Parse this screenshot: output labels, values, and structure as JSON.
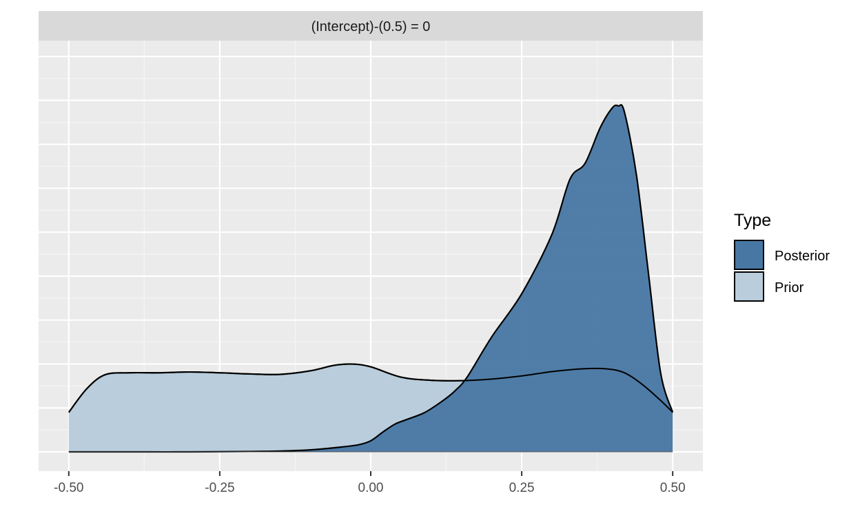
{
  "chart_data": {
    "type": "area",
    "facet_label": "(Intercept)-(0.5) = 0",
    "xlabel": "",
    "ylabel": "",
    "xlim": [
      -0.55,
      0.55
    ],
    "ylim": [
      0,
      1.0
    ],
    "x_ticks": [
      -0.5,
      -0.25,
      0.0,
      0.25,
      0.5
    ],
    "x_tick_labels": [
      "-0.50",
      "-0.25",
      "0.00",
      "0.25",
      "0.50"
    ],
    "grid": true,
    "y_axis_ticks_shown": false,
    "legend": {
      "title": "Type",
      "position": "right",
      "entries": [
        "Posterior",
        "Prior"
      ]
    },
    "series": [
      {
        "name": "Prior",
        "color": "#b9cddc",
        "x": [
          -0.5,
          -0.47,
          -0.44,
          -0.4,
          -0.35,
          -0.3,
          -0.25,
          -0.2,
          -0.15,
          -0.1,
          -0.06,
          -0.03,
          0.0,
          0.05,
          0.1,
          0.15,
          0.2,
          0.25,
          0.3,
          0.35,
          0.39,
          0.42,
          0.45,
          0.48,
          0.5
        ],
        "y": [
          0.1,
          0.16,
          0.195,
          0.2,
          0.2,
          0.202,
          0.2,
          0.197,
          0.196,
          0.205,
          0.219,
          0.222,
          0.215,
          0.189,
          0.181,
          0.18,
          0.184,
          0.192,
          0.203,
          0.21,
          0.21,
          0.2,
          0.17,
          0.13,
          0.1
        ]
      },
      {
        "name": "Posterior",
        "color": "#4877a3",
        "x": [
          -0.5,
          -0.4,
          -0.3,
          -0.2,
          -0.15,
          -0.1,
          -0.05,
          -0.02,
          0.0,
          0.02,
          0.04,
          0.06,
          0.09,
          0.12,
          0.14,
          0.16,
          0.2,
          0.25,
          0.3,
          0.33,
          0.355,
          0.38,
          0.4,
          0.41,
          0.42,
          0.44,
          0.46,
          0.48,
          0.5
        ],
        "y": [
          0.0,
          0.0,
          0.0,
          0.001,
          0.002,
          0.005,
          0.012,
          0.018,
          0.028,
          0.05,
          0.07,
          0.082,
          0.1,
          0.13,
          0.155,
          0.19,
          0.29,
          0.4,
          0.55,
          0.69,
          0.73,
          0.82,
          0.87,
          0.875,
          0.86,
          0.7,
          0.45,
          0.2,
          0.1
        ]
      }
    ]
  }
}
